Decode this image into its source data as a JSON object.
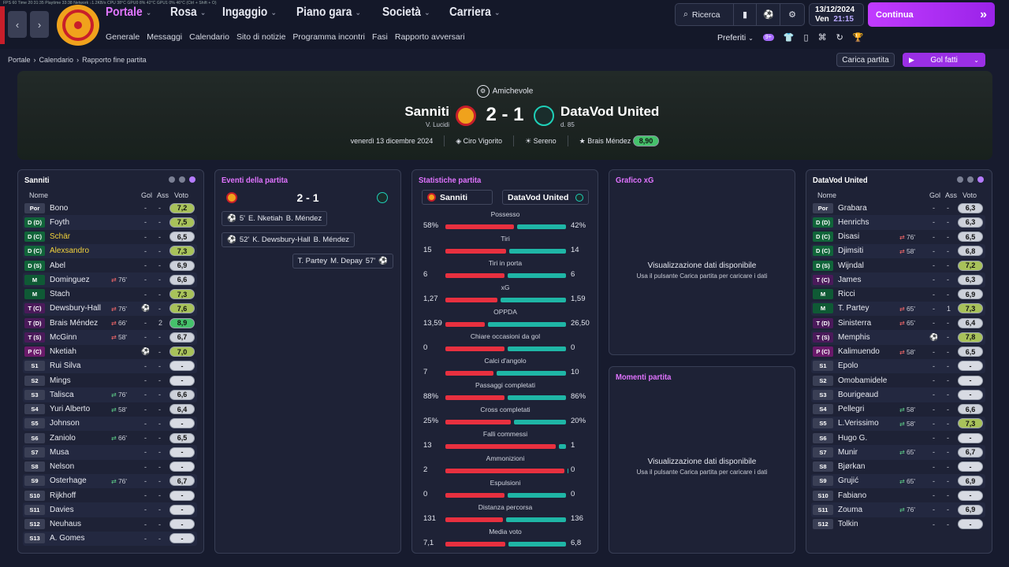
{
  "debug_line": "FPS 60    Time 20:31:35    Playtime 33:38    Network ↓1.2KB/s    CPU 38°C    GPU0 8%  42°C    GPU1 0%  46°C    (Ctrl + Shift + O)",
  "nav": {
    "back": "‹",
    "forward": "›"
  },
  "menu": [
    {
      "label": "Portale",
      "active": true
    },
    {
      "label": "Rosa",
      "active": false
    },
    {
      "label": "Ingaggio",
      "active": false
    },
    {
      "label": "Piano gara",
      "active": false
    },
    {
      "label": "Società",
      "active": false
    },
    {
      "label": "Carriera",
      "active": false
    }
  ],
  "submenu": [
    "Generale",
    "Messaggi",
    "Calendario",
    "Sito di notizie",
    "Programma incontri",
    "Fasi",
    "Rapporto avversari"
  ],
  "tools": {
    "search": "Ricerca",
    "icons": [
      "bookmark-icon",
      "ball-icon",
      "gear-icon"
    ]
  },
  "game_date": {
    "date": "13/12/2024",
    "day": "Ven",
    "time": "21:15"
  },
  "continue_label": "Continua",
  "prefs": {
    "label": "Preferiti",
    "badge": "9+"
  },
  "breadcrumb": [
    "Portale",
    "Calendario",
    "Rapporto fine partita"
  ],
  "buttons": {
    "load": "Carica partita",
    "goals": "Gol fatti"
  },
  "match": {
    "competition": "Amichevole",
    "home": {
      "name": "Sanniti",
      "sub": "V. Lucidi"
    },
    "away": {
      "name": "DataVod United",
      "sub": "d. 85"
    },
    "score": "2 - 1",
    "date": "venerdì 13 dicembre 2024",
    "referee": "Ciro Vigorito",
    "weather": "Sereno",
    "motm": "Brais Méndez",
    "motm_rating": "8,90"
  },
  "colors": {
    "accent": "#e277ff",
    "home": "#e8303f",
    "away": "#1fb6a6"
  },
  "home_panel": {
    "title": "Sanniti",
    "headers": {
      "name": "Nome",
      "gol": "Gol",
      "ass": "Ass",
      "voto": "Voto"
    },
    "players": [
      {
        "pos": "Por",
        "name": "Bono",
        "sub": "",
        "goals": "-",
        "assists": "-",
        "rating": "7,2",
        "card": ""
      },
      {
        "pos": "D (D)",
        "name": "Foyth",
        "sub": "",
        "goals": "-",
        "assists": "-",
        "rating": "7,5",
        "card": ""
      },
      {
        "pos": "D (C)",
        "name": "Schär",
        "sub": "",
        "goals": "-",
        "assists": "-",
        "rating": "6,5",
        "card": "",
        "yellow": true
      },
      {
        "pos": "D (C)",
        "name": "Alexsandro",
        "sub": "",
        "goals": "-",
        "assists": "-",
        "rating": "7,3",
        "card": "",
        "yellow": true
      },
      {
        "pos": "D (S)",
        "name": "Abel",
        "sub": "",
        "goals": "-",
        "assists": "-",
        "rating": "6,9",
        "card": ""
      },
      {
        "pos": "M",
        "name": "Dominguez",
        "sub": "76'",
        "goals": "-",
        "assists": "-",
        "rating": "6,6",
        "card": ""
      },
      {
        "pos": "M",
        "name": "Stach",
        "sub": "",
        "goals": "-",
        "assists": "-",
        "rating": "7,3",
        "card": ""
      },
      {
        "pos": "T (C)",
        "name": "Dewsbury-Hall",
        "sub": "76'",
        "goals": "⚽",
        "assists": "-",
        "rating": "7,6",
        "card": ""
      },
      {
        "pos": "T (D)",
        "name": "Brais Méndez",
        "sub": "66'",
        "goals": "-",
        "assists": "2",
        "rating": "8,9",
        "card": ""
      },
      {
        "pos": "T (S)",
        "name": "McGinn",
        "sub": "58'",
        "goals": "-",
        "assists": "-",
        "rating": "6,7",
        "card": ""
      },
      {
        "pos": "P (C)",
        "name": "Nketiah",
        "sub": "",
        "goals": "⚽",
        "assists": "-",
        "rating": "7,0",
        "card": ""
      },
      {
        "pos": "S1",
        "name": "Rui Silva",
        "sub": "",
        "goals": "-",
        "assists": "-",
        "rating": "-",
        "card": ""
      },
      {
        "pos": "S2",
        "name": "Mings",
        "sub": "",
        "goals": "-",
        "assists": "-",
        "rating": "-",
        "card": ""
      },
      {
        "pos": "S3",
        "name": "Talisca",
        "sub": "76'",
        "goals": "-",
        "assists": "-",
        "rating": "6,6",
        "card": "",
        "in": true
      },
      {
        "pos": "S4",
        "name": "Yuri Alberto",
        "sub": "58'",
        "goals": "-",
        "assists": "-",
        "rating": "6,4",
        "card": "",
        "in": true
      },
      {
        "pos": "S5",
        "name": "Johnson",
        "sub": "",
        "goals": "-",
        "assists": "-",
        "rating": "-",
        "card": ""
      },
      {
        "pos": "S6",
        "name": "Zaniolo",
        "sub": "66'",
        "goals": "-",
        "assists": "-",
        "rating": "6,5",
        "card": "",
        "in": true
      },
      {
        "pos": "S7",
        "name": "Musa",
        "sub": "",
        "goals": "-",
        "assists": "-",
        "rating": "-",
        "card": ""
      },
      {
        "pos": "S8",
        "name": "Nelson",
        "sub": "",
        "goals": "-",
        "assists": "-",
        "rating": "-",
        "card": ""
      },
      {
        "pos": "S9",
        "name": "Osterhage",
        "sub": "76'",
        "goals": "-",
        "assists": "-",
        "rating": "6,7",
        "card": "",
        "in": true
      },
      {
        "pos": "S10",
        "name": "Rijkhoff",
        "sub": "",
        "goals": "-",
        "assists": "-",
        "rating": "-",
        "card": ""
      },
      {
        "pos": "S11",
        "name": "Davies",
        "sub": "",
        "goals": "-",
        "assists": "-",
        "rating": "-",
        "card": ""
      },
      {
        "pos": "S12",
        "name": "Neuhaus",
        "sub": "",
        "goals": "-",
        "assists": "-",
        "rating": "-",
        "card": ""
      },
      {
        "pos": "S13",
        "name": "A. Gomes",
        "sub": "",
        "goals": "-",
        "assists": "-",
        "rating": "-",
        "card": ""
      }
    ]
  },
  "away_panel": {
    "title": "DataVod United",
    "headers": {
      "name": "Nome",
      "gol": "Gol",
      "ass": "Ass",
      "voto": "Voto"
    },
    "players": [
      {
        "pos": "Por",
        "name": "Grabara",
        "sub": "",
        "goals": "-",
        "assists": "-",
        "rating": "6,3"
      },
      {
        "pos": "D (D)",
        "name": "Henrichs",
        "sub": "",
        "goals": "-",
        "assists": "-",
        "rating": "6,3"
      },
      {
        "pos": "D (C)",
        "name": "Disasi",
        "sub": "76'",
        "goals": "-",
        "assists": "-",
        "rating": "6,5"
      },
      {
        "pos": "D (C)",
        "name": "Djimsiti",
        "sub": "58'",
        "goals": "-",
        "assists": "-",
        "rating": "6,8"
      },
      {
        "pos": "D (S)",
        "name": "Wijndal",
        "sub": "",
        "goals": "-",
        "assists": "-",
        "rating": "7,2"
      },
      {
        "pos": "T (C)",
        "name": "James",
        "sub": "",
        "goals": "-",
        "assists": "-",
        "rating": "6,3"
      },
      {
        "pos": "M",
        "name": "Ricci",
        "sub": "",
        "goals": "-",
        "assists": "-",
        "rating": "6,9"
      },
      {
        "pos": "M",
        "name": "T. Partey",
        "sub": "65'",
        "goals": "-",
        "assists": "1",
        "rating": "7,3"
      },
      {
        "pos": "T (D)",
        "name": "Sinisterra",
        "sub": "65'",
        "goals": "-",
        "assists": "-",
        "rating": "6,4"
      },
      {
        "pos": "T (S)",
        "name": "Memphis",
        "sub": "",
        "goals": "⚽",
        "assists": "-",
        "rating": "7,8"
      },
      {
        "pos": "P (C)",
        "name": "Kalimuendo",
        "sub": "58'",
        "goals": "-",
        "assists": "-",
        "rating": "6,5"
      },
      {
        "pos": "S1",
        "name": "Epolo",
        "sub": "",
        "goals": "-",
        "assists": "-",
        "rating": "-"
      },
      {
        "pos": "S2",
        "name": "Omobamidele",
        "sub": "",
        "goals": "-",
        "assists": "-",
        "rating": "-"
      },
      {
        "pos": "S3",
        "name": "Bourigeaud",
        "sub": "",
        "goals": "-",
        "assists": "-",
        "rating": "-"
      },
      {
        "pos": "S4",
        "name": "Pellegri",
        "sub": "58'",
        "goals": "-",
        "assists": "-",
        "rating": "6,6",
        "in": true
      },
      {
        "pos": "S5",
        "name": "L.Verissimo",
        "sub": "58'",
        "goals": "-",
        "assists": "-",
        "rating": "7,3",
        "in": true
      },
      {
        "pos": "S6",
        "name": "Hugo G.",
        "sub": "",
        "goals": "-",
        "assists": "-",
        "rating": "-"
      },
      {
        "pos": "S7",
        "name": "Munir",
        "sub": "65'",
        "goals": "-",
        "assists": "-",
        "rating": "6,7",
        "in": true
      },
      {
        "pos": "S8",
        "name": "Bjørkan",
        "sub": "",
        "goals": "-",
        "assists": "-",
        "rating": "-"
      },
      {
        "pos": "S9",
        "name": "Grujić",
        "sub": "65'",
        "goals": "-",
        "assists": "-",
        "rating": "6,9",
        "in": true
      },
      {
        "pos": "S10",
        "name": "Fabiano",
        "sub": "",
        "goals": "-",
        "assists": "-",
        "rating": "-"
      },
      {
        "pos": "S11",
        "name": "Zouma",
        "sub": "76'",
        "goals": "-",
        "assists": "-",
        "rating": "6,9",
        "in": true
      },
      {
        "pos": "S12",
        "name": "Tolkin",
        "sub": "",
        "goals": "-",
        "assists": "-",
        "rating": "-"
      }
    ]
  },
  "events_panel": {
    "title": "Eventi della partita",
    "score": "2 - 1",
    "events": [
      {
        "side": "home",
        "minute": "5'",
        "scorer": "E. Nketiah",
        "assist": "B. Méndez"
      },
      {
        "side": "home",
        "minute": "52'",
        "scorer": "K. Dewsbury-Hall",
        "assist": "B. Méndez"
      },
      {
        "side": "away",
        "minute": "57'",
        "scorer": "M. Depay",
        "assist": "T. Partey"
      }
    ]
  },
  "stats_panel": {
    "title": "Statistiche partita",
    "home": "Sanniti",
    "away": "DataVod United",
    "rows": [
      {
        "label": "Possesso",
        "home": "58%",
        "away": "42%",
        "h": 58,
        "a": 42
      },
      {
        "label": "Tiri",
        "home": "15",
        "away": "14",
        "h": 15,
        "a": 14
      },
      {
        "label": "Tiri in porta",
        "home": "6",
        "away": "6",
        "h": 6,
        "a": 6
      },
      {
        "label": "xG",
        "home": "1,27",
        "away": "1,59",
        "h": 1.27,
        "a": 1.59
      },
      {
        "label": "OPPDA",
        "home": "13,59",
        "away": "26,50",
        "h": 13.59,
        "a": 26.5
      },
      {
        "label": "Chiare occasioni da gol",
        "home": "0",
        "away": "0",
        "h": 0,
        "a": 0
      },
      {
        "label": "Calci d'angolo",
        "home": "7",
        "away": "10",
        "h": 7,
        "a": 10
      },
      {
        "label": "Passaggi completati",
        "home": "88%",
        "away": "86%",
        "h": 88,
        "a": 86
      },
      {
        "label": "Cross completati",
        "home": "25%",
        "away": "20%",
        "h": 25,
        "a": 20
      },
      {
        "label": "Falli commessi",
        "home": "13",
        "away": "1",
        "h": 13,
        "a": 1
      },
      {
        "label": "Ammonizioni",
        "home": "2",
        "away": "0",
        "h": 2,
        "a": 0
      },
      {
        "label": "Espulsioni",
        "home": "0",
        "away": "0",
        "h": 0,
        "a": 0
      },
      {
        "label": "Distanza percorsa",
        "home": "131",
        "away": "136",
        "h": 131,
        "a": 136
      },
      {
        "label": "Media voto",
        "home": "7,1",
        "away": "6,8",
        "h": 7.1,
        "a": 6.8
      }
    ]
  },
  "xg_panel": {
    "title": "Grafico xG",
    "msg": "Visualizzazione dati disponibile",
    "hint": "Usa il pulsante Carica partita per caricare i dati"
  },
  "moments_panel": {
    "title": "Momenti partita",
    "msg": "Visualizzazione dati disponibile",
    "hint": "Usa il pulsante Carica partita per caricare i dati"
  }
}
